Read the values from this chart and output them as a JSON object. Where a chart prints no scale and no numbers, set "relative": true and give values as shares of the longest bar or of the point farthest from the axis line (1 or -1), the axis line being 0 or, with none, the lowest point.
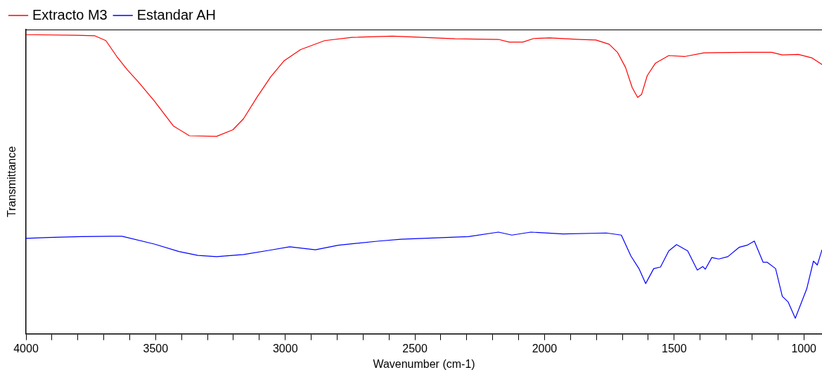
{
  "chart_data": {
    "type": "line",
    "xlabel": "Wavenumber (cm-1)",
    "ylabel": "Transmittance",
    "relative": true,
    "legend": "top left",
    "grid": false,
    "marker": "none",
    "line_style": "solid",
    "xlim": [
      4000,
      930
    ],
    "xticks": [
      4000,
      {
        "value": 3900,
        "label": null
      },
      {
        "value": 3800,
        "label": null
      },
      {
        "value": 3700,
        "label": null
      },
      {
        "value": 3600,
        "label": null
      },
      3500,
      {
        "value": 3400,
        "label": null
      },
      {
        "value": 3300,
        "label": null
      },
      {
        "value": 3200,
        "label": null
      },
      {
        "value": 3100,
        "label": null
      },
      3000,
      {
        "value": 2900,
        "label": null
      },
      {
        "value": 2800,
        "label": null
      },
      {
        "value": 2700,
        "label": null
      },
      {
        "value": 2600,
        "label": null
      },
      2500,
      {
        "value": 2400,
        "label": null
      },
      {
        "value": 2300,
        "label": null
      },
      {
        "value": 2200,
        "label": null
      },
      {
        "value": 2100,
        "label": null
      },
      2000,
      {
        "value": 1900,
        "label": null
      },
      {
        "value": 1800,
        "label": null
      },
      {
        "value": 1700,
        "label": null
      },
      {
        "value": 1600,
        "label": null
      },
      1500,
      {
        "value": 1400,
        "label": null
      },
      {
        "value": 1300,
        "label": null
      },
      {
        "value": 1200,
        "label": null
      },
      {
        "value": 1100,
        "label": null
      },
      1000
    ],
    "series": [
      {
        "name": "Extracto M3",
        "color": "#ff0000",
        "x": [
          4000,
          3807,
          3734,
          3692,
          3650,
          3609,
          3567,
          3505,
          3432,
          3370,
          3265,
          3202,
          3161,
          3109,
          3056,
          3004,
          2941,
          2848,
          2743,
          2587,
          2470,
          2345,
          2178,
          2136,
          2084,
          2042,
          1980,
          1865,
          1802,
          1751,
          1719,
          1688,
          1662,
          1641,
          1626,
          1604,
          1573,
          1521,
          1458,
          1385,
          1219,
          1124,
          1083,
          1021,
          968,
          930
        ],
        "values": [
          1.0,
          0.998,
          0.996,
          0.98,
          0.927,
          0.882,
          0.842,
          0.778,
          0.695,
          0.662,
          0.66,
          0.682,
          0.719,
          0.791,
          0.859,
          0.913,
          0.95,
          0.98,
          0.991,
          0.995,
          0.991,
          0.986,
          0.984,
          0.975,
          0.975,
          0.987,
          0.989,
          0.984,
          0.982,
          0.968,
          0.941,
          0.891,
          0.823,
          0.79,
          0.8,
          0.863,
          0.904,
          0.93,
          0.927,
          0.939,
          0.941,
          0.941,
          0.932,
          0.934,
          0.922,
          0.9
        ]
      },
      {
        "name": "Estandar AH",
        "color": "#0000ff",
        "x": [
          4000,
          3912,
          3787,
          3671,
          3630,
          3505,
          3410,
          3337,
          3265,
          3161,
          3056,
          2983,
          2884,
          2795,
          2639,
          2553,
          2293,
          2178,
          2126,
          2053,
          1928,
          1762,
          1704,
          1667,
          1636,
          1610,
          1579,
          1553,
          1521,
          1491,
          1448,
          1411,
          1390,
          1380,
          1355,
          1328,
          1293,
          1250,
          1219,
          1191,
          1157,
          1141,
          1109,
          1083,
          1061,
          1033,
          989,
          963,
          948,
          930
        ],
        "values": [
          0.319,
          0.322,
          0.325,
          0.326,
          0.326,
          0.3,
          0.275,
          0.262,
          0.258,
          0.265,
          0.28,
          0.291,
          0.281,
          0.296,
          0.31,
          0.316,
          0.325,
          0.34,
          0.33,
          0.34,
          0.334,
          0.337,
          0.33,
          0.26,
          0.218,
          0.168,
          0.218,
          0.223,
          0.277,
          0.298,
          0.277,
          0.213,
          0.225,
          0.216,
          0.255,
          0.25,
          0.258,
          0.289,
          0.296,
          0.31,
          0.239,
          0.239,
          0.218,
          0.125,
          0.107,
          0.052,
          0.15,
          0.243,
          0.23,
          0.281
        ]
      }
    ]
  }
}
